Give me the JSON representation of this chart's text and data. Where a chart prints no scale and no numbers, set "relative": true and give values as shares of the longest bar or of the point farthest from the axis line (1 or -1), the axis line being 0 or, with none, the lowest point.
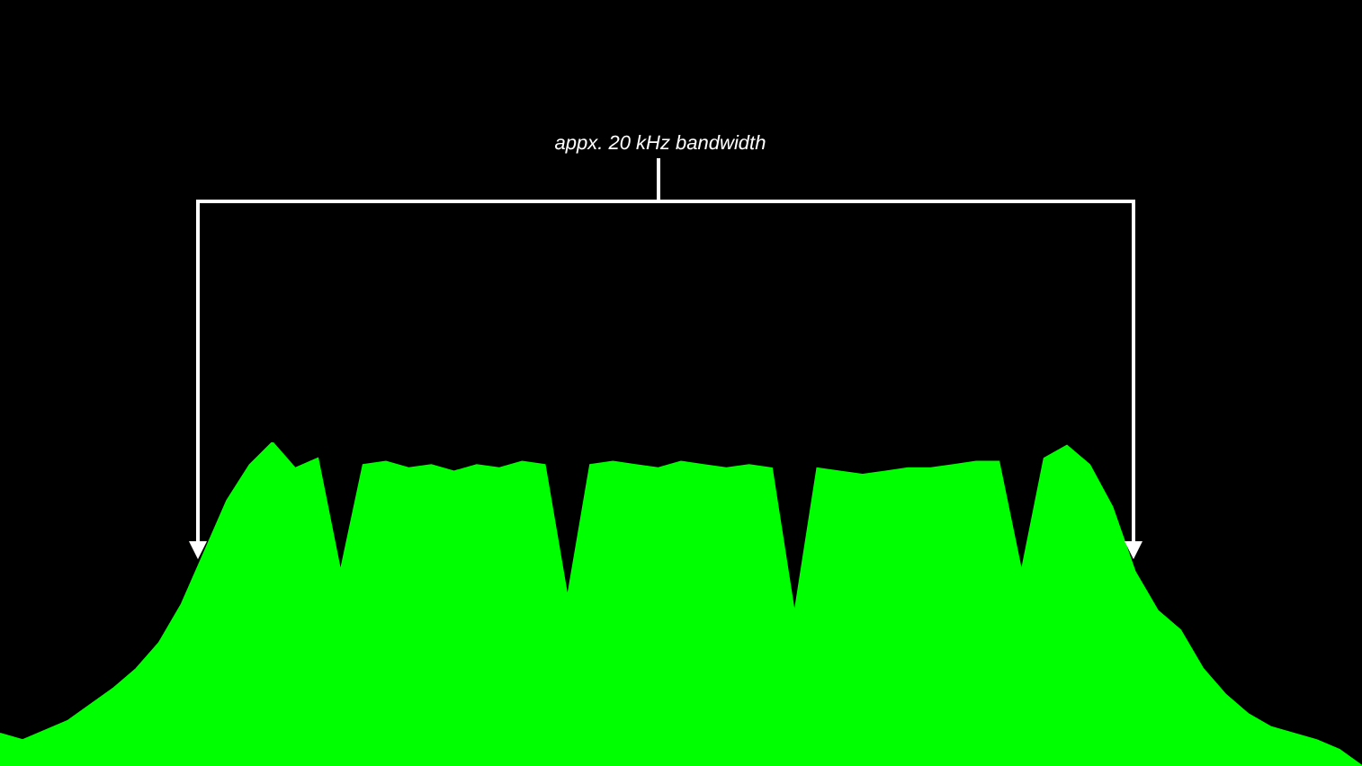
{
  "chart_data": {
    "type": "area",
    "relative": true,
    "color": "#00ff00",
    "categories": [
      null,
      null,
      null,
      null,
      null,
      null,
      null,
      null,
      null,
      null,
      null,
      null,
      null,
      null,
      null,
      null,
      null,
      null,
      null,
      null,
      null,
      null,
      null,
      null,
      null,
      null,
      null,
      null,
      null,
      null,
      null,
      null,
      null,
      null,
      null,
      null,
      null,
      null,
      null,
      null,
      null,
      null,
      null,
      null,
      null,
      null,
      null,
      null,
      null,
      null,
      null,
      null,
      null,
      null,
      null,
      null,
      null,
      null,
      null,
      null,
      null
    ],
    "values": [
      0.1,
      0.08,
      0.11,
      0.14,
      0.19,
      0.24,
      0.3,
      0.38,
      0.5,
      0.66,
      0.82,
      0.93,
      1.0,
      0.92,
      0.95,
      0.6,
      0.93,
      0.94,
      0.92,
      0.93,
      0.91,
      0.93,
      0.92,
      0.94,
      0.93,
      0.52,
      0.93,
      0.94,
      0.93,
      0.92,
      0.94,
      0.93,
      0.92,
      0.93,
      0.92,
      0.47,
      0.92,
      0.91,
      0.9,
      0.91,
      0.92,
      0.92,
      0.93,
      0.94,
      0.94,
      0.6,
      0.95,
      0.99,
      0.93,
      0.8,
      0.6,
      0.48,
      0.42,
      0.3,
      0.22,
      0.16,
      0.12,
      0.1,
      0.08,
      0.05,
      0.0
    ],
    "annotations": [
      "appx. 20 kHz bandwidth"
    ]
  }
}
